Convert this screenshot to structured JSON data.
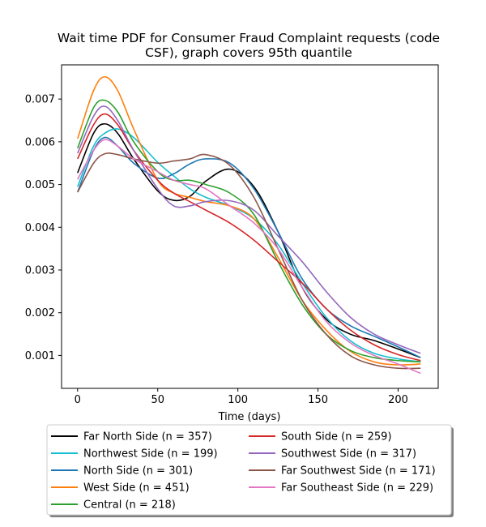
{
  "chart_data": {
    "type": "line",
    "title_line1": "Wait time PDF for Consumer Fraud Complaint  requests (code",
    "title_line2": "CSF), graph covers 95th quantile",
    "xlabel": "Time (days)",
    "ylabel": "",
    "xlim": [
      -10,
      225
    ],
    "ylim": [
      0.00023,
      0.0078
    ],
    "x_ticks": [
      0,
      50,
      100,
      150,
      200
    ],
    "x_tick_labels": [
      "0",
      "50",
      "100",
      "150",
      "200"
    ],
    "y_ticks": [
      0.001,
      0.002,
      0.003,
      0.004,
      0.005,
      0.006,
      0.007
    ],
    "y_tick_labels": [
      "0.001",
      "0.002",
      "0.003",
      "0.004",
      "0.005",
      "0.006",
      "0.007"
    ],
    "grid": false,
    "legend_placement": "below-plot",
    "x": [
      0,
      10,
      17,
      25,
      35,
      50,
      60,
      70,
      80,
      95,
      110,
      125,
      140,
      155,
      170,
      185,
      200,
      214
    ],
    "series": [
      {
        "name": "Far North Side (n = 357)",
        "color": "#000000",
        "values": [
          0.00527,
          0.0062,
          0.00642,
          0.0062,
          0.0056,
          0.00485,
          0.00463,
          0.00472,
          0.00508,
          0.00536,
          0.00495,
          0.0039,
          0.0026,
          0.00185,
          0.0015,
          0.00135,
          0.00115,
          0.00095
        ]
      },
      {
        "name": "Northwest Side (n = 199)",
        "color": "#17becf",
        "values": [
          0.00495,
          0.0059,
          0.0062,
          0.0063,
          0.0061,
          0.00552,
          0.0052,
          0.0049,
          0.0047,
          0.0045,
          0.0042,
          0.0036,
          0.0027,
          0.0019,
          0.00135,
          0.00105,
          0.00092,
          0.00085
        ]
      },
      {
        "name": "North Side (n = 301)",
        "color": "#1f77b4",
        "values": [
          0.00482,
          0.0058,
          0.0061,
          0.0059,
          0.0055,
          0.00515,
          0.00525,
          0.00548,
          0.0056,
          0.0055,
          0.0049,
          0.0039,
          0.0028,
          0.0021,
          0.0017,
          0.00145,
          0.0012,
          0.00095
        ]
      },
      {
        "name": "West Side (n = 451)",
        "color": "#ff7f0e",
        "values": [
          0.00607,
          0.0072,
          0.00752,
          0.0072,
          0.0063,
          0.0051,
          0.0048,
          0.0047,
          0.0046,
          0.0045,
          0.0042,
          0.0033,
          0.0023,
          0.0016,
          0.0011,
          0.00085,
          0.00078,
          0.0008
        ]
      },
      {
        "name": "Central (n = 218)",
        "color": "#2ca02c",
        "values": [
          0.00585,
          0.0068,
          0.00697,
          0.0067,
          0.006,
          0.0053,
          0.0051,
          0.0051,
          0.005,
          0.0048,
          0.0043,
          0.0032,
          0.0022,
          0.0015,
          0.00112,
          0.00095,
          0.00088,
          0.00085
        ]
      },
      {
        "name": "South Side (n = 259)",
        "color": "#d62728",
        "values": [
          0.0056,
          0.0064,
          0.00665,
          0.0064,
          0.0058,
          0.0051,
          0.0048,
          0.0046,
          0.0044,
          0.0041,
          0.0037,
          0.0032,
          0.0027,
          0.0021,
          0.0016,
          0.00125,
          0.00102,
          0.00088
        ]
      },
      {
        "name": "Southwest Side (n = 317)",
        "color": "#9467bd",
        "values": [
          0.00573,
          0.0066,
          0.00683,
          0.0065,
          0.0058,
          0.0049,
          0.0045,
          0.0045,
          0.0046,
          0.00462,
          0.0044,
          0.0038,
          0.0032,
          0.0025,
          0.0019,
          0.0015,
          0.00125,
          0.00105
        ]
      },
      {
        "name": "Far Southwest Side (n = 171)",
        "color": "#8c564b",
        "values": [
          0.00482,
          0.0055,
          0.00572,
          0.0057,
          0.0056,
          0.0055,
          0.00555,
          0.0056,
          0.0057,
          0.00545,
          0.0047,
          0.0035,
          0.0023,
          0.0015,
          0.001,
          0.00078,
          0.0007,
          0.0007
        ]
      },
      {
        "name": "Far Southeast Side (n = 229)",
        "color": "#e377c2",
        "values": [
          0.00512,
          0.0058,
          0.00605,
          0.0059,
          0.0056,
          0.0053,
          0.0051,
          0.005,
          0.0049,
          0.0045,
          0.0041,
          0.0035,
          0.0026,
          0.0018,
          0.0013,
          0.001,
          0.0008,
          0.00058
        ]
      }
    ]
  }
}
